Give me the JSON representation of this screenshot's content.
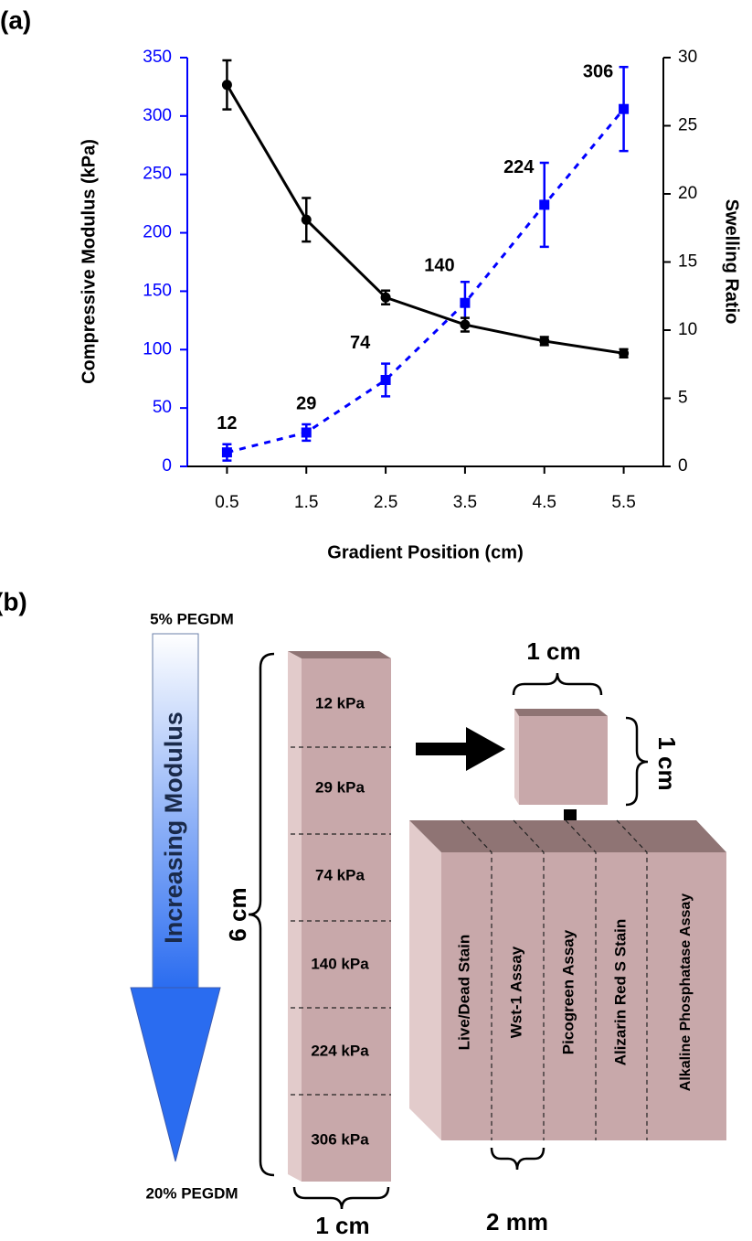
{
  "panel_labels": [
    "(a)",
    "(b)"
  ],
  "chart_data": {
    "type": "line",
    "xlabel": "Gradient Position  (cm)",
    "ylabel": "Compressive Modulus (kPa)",
    "y2label": "Swelling Ratio",
    "x": [
      0.5,
      1.5,
      2.5,
      3.5,
      4.5,
      5.5
    ],
    "xlim": [
      0,
      6
    ],
    "xticks": [
      0.5,
      1.5,
      2.5,
      3.5,
      4.5,
      5.5
    ],
    "ylim": [
      0,
      350
    ],
    "yticks": [
      0,
      50,
      100,
      150,
      200,
      250,
      300,
      350
    ],
    "y2lim": [
      0,
      30
    ],
    "y2ticks": [
      0,
      5,
      10,
      15,
      20,
      25,
      30
    ],
    "yaxis_color": "#0000ff",
    "series": [
      {
        "color": "#0000ff",
        "line_style": "dashed",
        "marker": "square",
        "data_labels": true,
        "values": [
          12,
          29,
          74,
          140,
          224,
          306
        ],
        "errors": [
          7,
          7,
          14,
          18,
          36,
          36
        ]
      },
      {
        "color": "#000000",
        "line_style": "solid",
        "marker": "circle",
        "axis": "y2",
        "values": [
          28.0,
          18.1,
          12.4,
          10.4,
          9.2,
          8.3
        ],
        "errors": [
          1.8,
          1.6,
          0.5,
          0.5,
          0.3,
          0.3
        ]
      }
    ]
  },
  "diagram": {
    "arrow": {
      "top": "5% PEGDM",
      "label": "Increasing Modulus",
      "bottom": "20% PEGDM"
    },
    "column": {
      "height_label": "6 cm",
      "width_label": "1 cm",
      "segments": [
        "12 kPa",
        "29 kPa",
        "74 kPa",
        "140 kPa",
        "224 kPa",
        "306 kPa"
      ]
    },
    "cube": {
      "width_label": "1 cm",
      "height_label": "1 cm"
    },
    "slab": {
      "sections": [
        "Live/Dead Stain",
        "Wst-1 Assay",
        "Picogreen Assay",
        "Alizarin Red S Stain",
        "Alkaline Phosphatase Assay"
      ],
      "section_width_label": "2 mm"
    }
  }
}
